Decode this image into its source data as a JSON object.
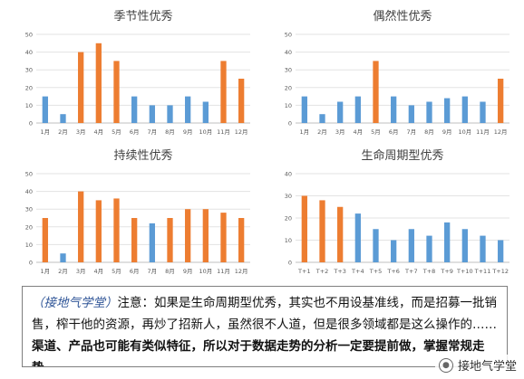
{
  "chart_data": [
    {
      "type": "bar",
      "title": "季节性优秀",
      "categories": [
        "1月",
        "2月",
        "3月",
        "4月",
        "5月",
        "6月",
        "7月",
        "8月",
        "9月",
        "10月",
        "11月",
        "12月"
      ],
      "values": [
        15,
        5,
        40,
        45,
        35,
        15,
        10,
        10,
        15,
        12,
        35,
        25
      ],
      "highlight": [
        false,
        false,
        true,
        true,
        true,
        false,
        false,
        false,
        false,
        false,
        true,
        true
      ],
      "ylim": [
        0,
        50
      ],
      "yticks": [
        0,
        10,
        20,
        30,
        40,
        50
      ],
      "grid": true,
      "legend": "none"
    },
    {
      "type": "bar",
      "title": "偶然性优秀",
      "categories": [
        "1月",
        "2月",
        "3月",
        "4月",
        "5月",
        "6月",
        "7月",
        "8月",
        "9月",
        "10月",
        "11月",
        "12月"
      ],
      "values": [
        15,
        5,
        12,
        15,
        35,
        15,
        10,
        12,
        14,
        15,
        12,
        25
      ],
      "highlight": [
        false,
        false,
        false,
        false,
        true,
        false,
        false,
        false,
        false,
        false,
        false,
        true
      ],
      "ylim": [
        0,
        50
      ],
      "yticks": [
        0,
        10,
        20,
        30,
        40,
        50
      ],
      "grid": true,
      "legend": "none"
    },
    {
      "type": "bar",
      "title": "持续性优秀",
      "categories": [
        "1月",
        "2月",
        "3月",
        "4月",
        "5月",
        "6月",
        "7月",
        "8月",
        "9月",
        "10月",
        "11月",
        "12月"
      ],
      "values": [
        25,
        5,
        40,
        35,
        36,
        25,
        22,
        25,
        30,
        30,
        28,
        25
      ],
      "highlight": [
        true,
        false,
        true,
        true,
        true,
        true,
        false,
        true,
        true,
        true,
        true,
        true
      ],
      "ylim": [
        0,
        50
      ],
      "yticks": [
        0,
        10,
        20,
        30,
        40,
        50
      ],
      "grid": true,
      "legend": "none"
    },
    {
      "type": "bar",
      "title": "生命周期型优秀",
      "categories": [
        "T+1",
        "T+2",
        "T+3",
        "T+4",
        "T+5",
        "T+6",
        "T+7",
        "T+8",
        "T+9",
        "T+10",
        "T+11",
        "T+12"
      ],
      "values": [
        30,
        28,
        25,
        22,
        15,
        10,
        15,
        12,
        18,
        15,
        12,
        10
      ],
      "highlight": [
        true,
        true,
        true,
        false,
        false,
        false,
        false,
        false,
        false,
        false,
        false,
        false
      ],
      "ylim": [
        0,
        40
      ],
      "yticks": [
        0,
        10,
        20,
        30,
        40
      ],
      "grid": true,
      "legend": "none"
    }
  ],
  "colors": {
    "highlight": "#ed7d31",
    "normal": "#5b9bd5"
  },
  "note": {
    "source": "（接地气学堂）",
    "text_normal": "注意：如果是生命周期型优秀，其实也不用设基准线，而是招募一批销售，榨干他的资源，再炒了招新人，虽然很不人道，但是很多领域都是这么操作的……",
    "text_bold": "渠道、产品也可能有类似特征，所以对于数据走势的分析一定要提前做，掌握常规走势。"
  },
  "watermark": {
    "icon": "wechat-icon",
    "text": "接地气学堂"
  }
}
